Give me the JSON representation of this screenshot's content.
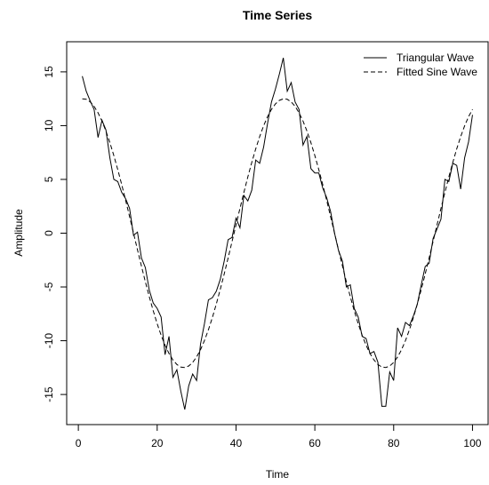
{
  "chart_data": {
    "type": "line",
    "title": "Time Series",
    "x_label": "Time",
    "y_label": "Amplitude",
    "x": [
      1,
      2,
      3,
      4,
      5,
      6,
      7,
      8,
      9,
      10,
      11,
      12,
      13,
      14,
      15,
      16,
      17,
      18,
      19,
      20,
      21,
      22,
      23,
      24,
      25,
      26,
      27,
      28,
      29,
      30,
      31,
      32,
      33,
      34,
      35,
      36,
      37,
      38,
      39,
      40,
      41,
      42,
      43,
      44,
      45,
      46,
      47,
      48,
      49,
      50,
      51,
      52,
      53,
      54,
      55,
      56,
      57,
      58,
      59,
      60,
      61,
      62,
      63,
      64,
      65,
      66,
      67,
      68,
      69,
      70,
      71,
      72,
      73,
      74,
      75,
      76,
      77,
      78,
      79,
      80,
      81,
      82,
      83,
      84,
      85,
      86,
      87,
      88,
      89,
      90,
      91,
      92,
      93,
      94,
      95,
      96,
      97,
      98,
      99,
      100
    ],
    "series": [
      {
        "name": "Triangular Wave",
        "color": "#000000",
        "dash": "solid",
        "values": [
          14.6,
          13.2,
          12.3,
          11.5,
          8.9,
          10.5,
          9.6,
          7.0,
          5.0,
          4.8,
          3.8,
          3.2,
          2.3,
          -0.2,
          0.1,
          -2.3,
          -3.2,
          -5.3,
          -6.5,
          -7.0,
          -7.8,
          -11.3,
          -9.6,
          -13.4,
          -12.7,
          -14.7,
          -16.4,
          -14.2,
          -13.1,
          -13.7,
          -10.3,
          -8.4,
          -6.2,
          -6.0,
          -5.4,
          -4.3,
          -2.6,
          -0.6,
          -0.4,
          1.4,
          0.5,
          3.5,
          3.0,
          4.0,
          6.8,
          6.5,
          8.0,
          10.2,
          12.2,
          13.4,
          14.8,
          16.3,
          13.2,
          14.0,
          12.2,
          11.5,
          8.2,
          9.0,
          6.0,
          5.6,
          5.6,
          4.2,
          3.3,
          2.0,
          0.0,
          -1.6,
          -2.6,
          -5.0,
          -4.8,
          -7.0,
          -7.8,
          -9.6,
          -9.8,
          -11.2,
          -11.0,
          -12.0,
          -16.1,
          -16.1,
          -12.9,
          -13.7,
          -8.8,
          -9.6,
          -8.3,
          -8.6,
          -7.7,
          -6.6,
          -4.8,
          -3.1,
          -2.8,
          -0.5,
          0.4,
          1.3,
          5.0,
          4.8,
          6.5,
          6.3,
          4.1,
          7.0,
          8.5,
          11.0
        ]
      },
      {
        "name": "Fitted Sine Wave",
        "color": "#000000",
        "dash": "dashed",
        "values": [
          12.49,
          12.45,
          12.21,
          11.79,
          11.19,
          10.42,
          9.49,
          8.42,
          7.22,
          5.91,
          4.52,
          3.05,
          1.54,
          0.0,
          -1.54,
          -3.05,
          -4.52,
          -5.91,
          -7.22,
          -8.42,
          -9.49,
          -10.42,
          -11.19,
          -11.79,
          -12.21,
          -12.45,
          -12.49,
          -12.35,
          -12.02,
          -11.51,
          -10.83,
          -9.98,
          -8.98,
          -7.85,
          -6.59,
          -5.23,
          -3.8,
          -2.3,
          -0.77,
          0.77,
          2.3,
          3.79,
          5.23,
          6.58,
          7.84,
          8.98,
          9.98,
          10.83,
          11.51,
          12.02,
          12.35,
          12.49,
          12.45,
          12.21,
          11.79,
          11.19,
          10.42,
          9.49,
          8.42,
          7.22,
          5.91,
          4.52,
          3.05,
          1.54,
          0.0,
          -1.54,
          -3.05,
          -4.52,
          -5.91,
          -7.22,
          -8.42,
          -9.49,
          -10.42,
          -11.19,
          -11.79,
          -12.21,
          -12.45,
          -12.49,
          -12.35,
          -12.02,
          -11.51,
          -10.83,
          -9.98,
          -8.98,
          -7.85,
          -6.59,
          -5.23,
          -3.8,
          -2.3,
          -0.77,
          0.77,
          2.3,
          3.79,
          5.23,
          6.58,
          7.84,
          8.98,
          9.98,
          10.83,
          11.51
        ]
      }
    ],
    "xlim": [
      -2.96,
      103.96
    ],
    "ylim": [
      -17.8,
      17.8
    ],
    "xticks": [
      0,
      20,
      40,
      60,
      80,
      100
    ],
    "yticks": [
      -15,
      -10,
      -5,
      0,
      5,
      10,
      15
    ],
    "legend": "top-right"
  }
}
